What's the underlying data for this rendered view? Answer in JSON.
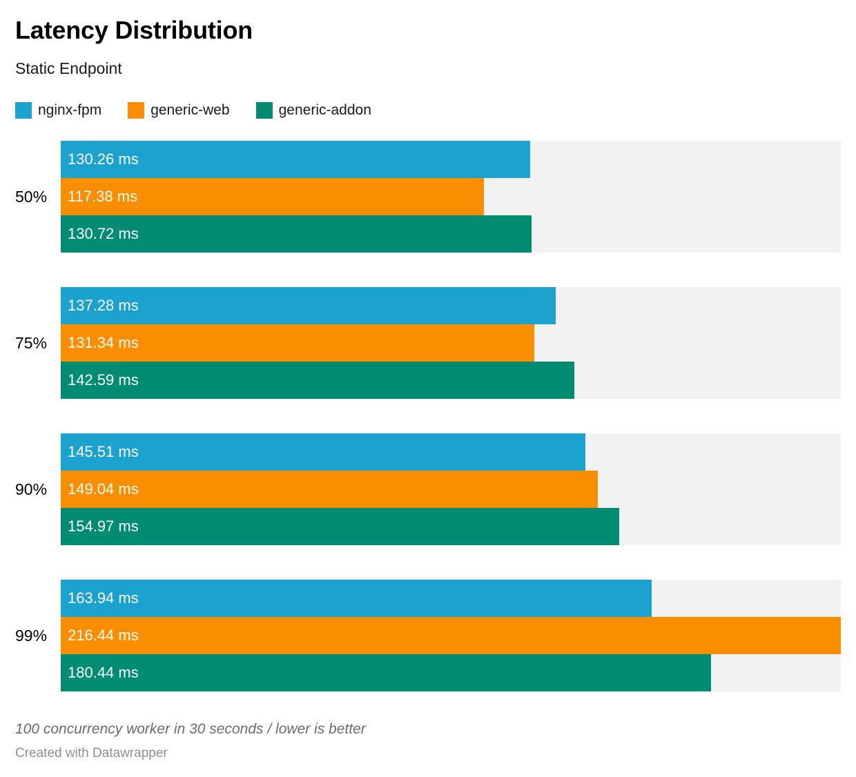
{
  "header": {
    "title": "Latency Distribution",
    "subtitle": "Static Endpoint"
  },
  "legend": [
    {
      "label": "nginx-fpm",
      "color": "#1CA2CE"
    },
    {
      "label": "generic-web",
      "color": "#F98F00"
    },
    {
      "label": "generic-addon",
      "color": "#008C72"
    }
  ],
  "chart_data": {
    "type": "bar",
    "orientation": "horizontal",
    "grouped": true,
    "categories": [
      "50%",
      "75%",
      "90%",
      "99%"
    ],
    "series": [
      {
        "name": "nginx-fpm",
        "color": "#1CA2CE",
        "values": [
          130.26,
          137.28,
          145.51,
          163.94
        ]
      },
      {
        "name": "generic-web",
        "color": "#F98F00",
        "values": [
          117.38,
          131.34,
          149.04,
          216.44
        ]
      },
      {
        "name": "generic-addon",
        "color": "#008C72",
        "values": [
          130.72,
          142.59,
          154.97,
          180.44
        ]
      }
    ],
    "value_suffix": " ms",
    "value_decimals": 2,
    "xlim": [
      0,
      216.44
    ],
    "track_color": "#F2F2F2",
    "title": "Latency Distribution",
    "subtitle": "Static Endpoint",
    "legend_position": "top",
    "grid": false
  },
  "footer": {
    "note": "100 concurrency worker in 30 seconds / lower is better",
    "credit": "Created with Datawrapper"
  }
}
